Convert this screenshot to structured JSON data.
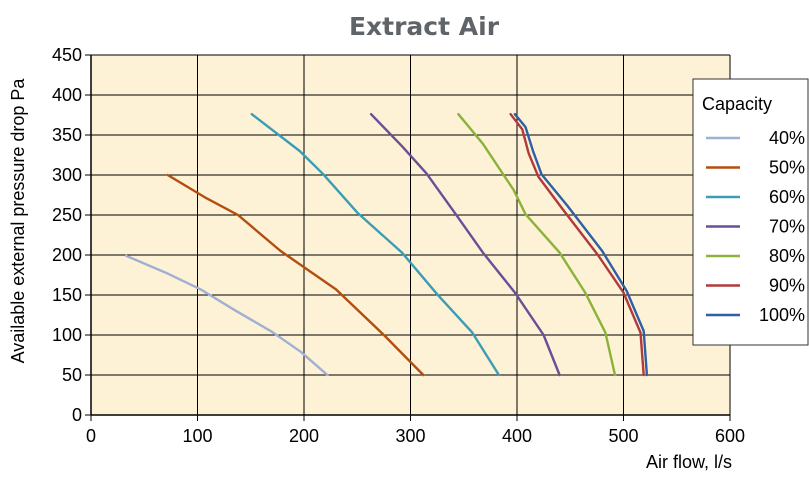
{
  "chart_data": {
    "type": "line",
    "title": "Extract Air",
    "xlabel": "Air flow, l/s",
    "ylabel": "Available external pressure drop Pa",
    "xlim": [
      0,
      600
    ],
    "ylim": [
      0,
      450
    ],
    "x_ticks": [
      0,
      100,
      200,
      300,
      400,
      500,
      600
    ],
    "y_ticks": [
      0,
      50,
      100,
      150,
      200,
      250,
      300,
      350,
      400,
      450
    ],
    "grid": true,
    "legend_title": "Capacity",
    "legend_position": "right",
    "plot_background": "#fdf1d6",
    "series": [
      {
        "name": "40%",
        "color": "#9fb0d4",
        "points": [
          [
            33,
            199
          ],
          [
            70,
            178
          ],
          [
            103,
            157
          ],
          [
            135,
            131
          ],
          [
            170,
            104
          ],
          [
            197,
            79
          ],
          [
            222,
            50
          ]
        ]
      },
      {
        "name": "50%",
        "color": "#b34e0f",
        "points": [
          [
            72,
            300
          ],
          [
            107,
            272
          ],
          [
            138,
            250
          ],
          [
            178,
            205
          ],
          [
            230,
            157
          ],
          [
            275,
            100
          ],
          [
            312,
            50
          ]
        ]
      },
      {
        "name": "60%",
        "color": "#3b9db5",
        "points": [
          [
            151,
            376
          ],
          [
            196,
            330
          ],
          [
            218,
            301
          ],
          [
            250,
            253
          ],
          [
            292,
            203
          ],
          [
            325,
            151
          ],
          [
            358,
            103
          ],
          [
            383,
            50
          ]
        ]
      },
      {
        "name": "70%",
        "color": "#6c4e96",
        "points": [
          [
            263,
            376
          ],
          [
            292,
            336
          ],
          [
            315,
            302
          ],
          [
            342,
            252
          ],
          [
            368,
            203
          ],
          [
            398,
            153
          ],
          [
            425,
            100
          ],
          [
            440,
            50
          ]
        ]
      },
      {
        "name": "80%",
        "color": "#8bb33a",
        "points": [
          [
            345,
            376
          ],
          [
            368,
            339
          ],
          [
            385,
            305
          ],
          [
            397,
            281
          ],
          [
            408,
            251
          ],
          [
            440,
            203
          ],
          [
            464,
            153
          ],
          [
            483,
            103
          ],
          [
            492,
            50
          ]
        ]
      },
      {
        "name": "90%",
        "color": "#b23a3b",
        "points": [
          [
            394,
            376
          ],
          [
            405,
            357
          ],
          [
            411,
            327
          ],
          [
            420,
            298
          ],
          [
            443,
            257
          ],
          [
            476,
            200
          ],
          [
            500,
            153
          ],
          [
            516,
            103
          ],
          [
            519,
            50
          ]
        ]
      },
      {
        "name": "100%",
        "color": "#2f5fa5",
        "points": [
          [
            398,
            376
          ],
          [
            408,
            360
          ],
          [
            415,
            330
          ],
          [
            423,
            301
          ],
          [
            447,
            262
          ],
          [
            480,
            205
          ],
          [
            503,
            155
          ],
          [
            519,
            105
          ],
          [
            522,
            50
          ]
        ]
      }
    ]
  }
}
